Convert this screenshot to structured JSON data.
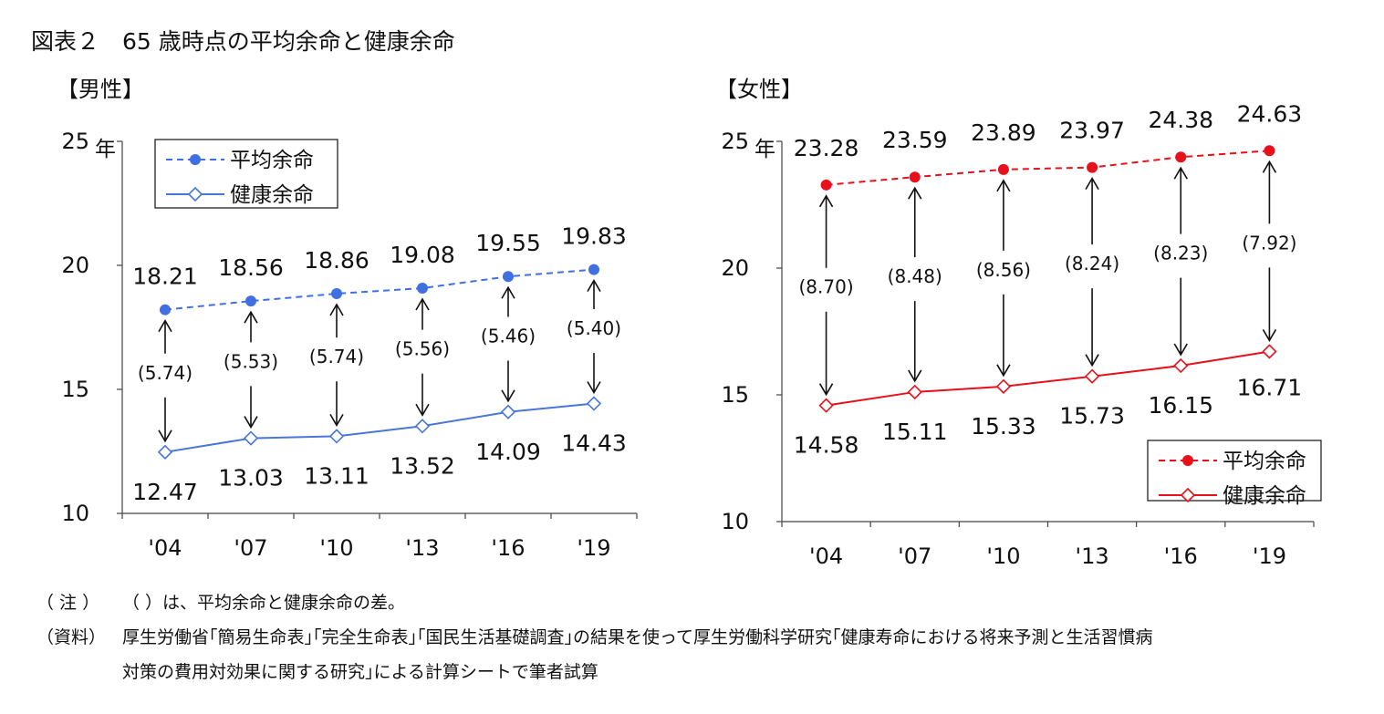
{
  "title": "図表２　65 歳時点の平均余命と健康余命",
  "chart_data": [
    {
      "type": "line",
      "panel_label": "【男性】",
      "categories": [
        "'04",
        "'07",
        "'10",
        "'13",
        "'16",
        "'19"
      ],
      "y_unit": "年",
      "ylim": [
        10,
        25
      ],
      "yticks": [
        "10",
        "15",
        "20",
        "25"
      ],
      "series": [
        {
          "name": "平均余命",
          "values": [
            18.21,
            18.56,
            18.86,
            19.08,
            19.55,
            19.83
          ],
          "labels": [
            "18.21",
            "18.56",
            "18.86",
            "19.08",
            "19.55",
            "19.83"
          ],
          "style": "dashed",
          "marker": "filled-circle",
          "color": "#3f6fe0"
        },
        {
          "name": "健康余命",
          "values": [
            12.47,
            13.03,
            13.11,
            13.52,
            14.09,
            14.43
          ],
          "labels": [
            "12.47",
            "13.03",
            "13.11",
            "13.52",
            "14.09",
            "14.43"
          ],
          "style": "solid",
          "marker": "open-diamond",
          "color": "#4a76d9"
        }
      ],
      "differences": [
        "(5.74)",
        "(5.53)",
        "(5.74)",
        "(5.56)",
        "(5.46)",
        "(5.40)"
      ],
      "legend": {
        "position": "top-left"
      }
    },
    {
      "type": "line",
      "panel_label": "【女性】",
      "categories": [
        "'04",
        "'07",
        "'10",
        "'13",
        "'16",
        "'19"
      ],
      "y_unit": "年",
      "ylim": [
        10,
        25
      ],
      "yticks": [
        "10",
        "15",
        "20",
        "25"
      ],
      "series": [
        {
          "name": "平均余命",
          "values": [
            23.28,
            23.59,
            23.89,
            23.97,
            24.38,
            24.63
          ],
          "labels": [
            "23.28",
            "23.59",
            "23.89",
            "23.97",
            "24.38",
            "24.63"
          ],
          "style": "dashed",
          "marker": "filled-circle",
          "color": "#e8101a"
        },
        {
          "name": "健康余命",
          "values": [
            14.58,
            15.11,
            15.33,
            15.73,
            16.15,
            16.71
          ],
          "labels": [
            "14.58",
            "15.11",
            "15.33",
            "15.73",
            "16.15",
            "16.71"
          ],
          "style": "solid",
          "marker": "open-diamond",
          "color": "#e8101a"
        }
      ],
      "differences": [
        "(8.70)",
        "(8.48)",
        "(8.56)",
        "(8.24)",
        "(8.23)",
        "(7.92)"
      ],
      "legend": {
        "position": "bottom-right"
      }
    }
  ],
  "notes": [
    {
      "head": "（ 注 ）",
      "text": "（ ）は、平均余命と健康余命の差。"
    },
    {
      "head": "（資料）",
      "text": "厚生労働省｢簡易生命表｣｢完全生命表｣｢国民生活基礎調査｣の結果を使って厚生労働科学研究｢健康寿命における将来予測と生活習慣病"
    },
    {
      "head": "",
      "text": "対策の費用対効果に関する研究｣による計算シートで筆者試算"
    }
  ]
}
